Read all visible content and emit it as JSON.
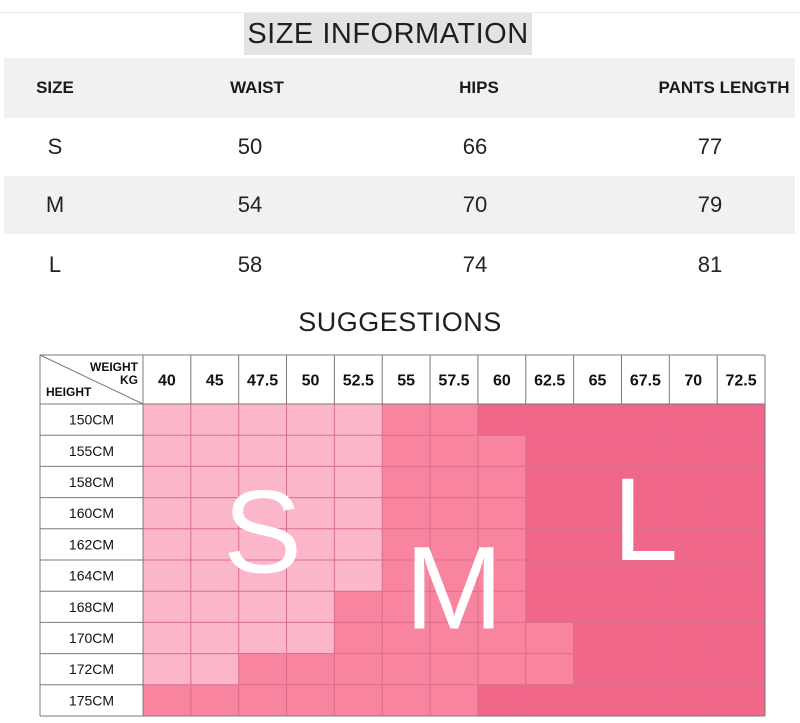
{
  "size_information": {
    "title": "SIZE INFORMATION",
    "columns": [
      "SIZE",
      "WAIST",
      "HIPS",
      "PANTS LENGTH"
    ],
    "rows": [
      {
        "size": "S",
        "waist": "50",
        "hips": "66",
        "pants_length": "77"
      },
      {
        "size": "M",
        "waist": "54",
        "hips": "70",
        "pants_length": "79"
      },
      {
        "size": "L",
        "waist": "58",
        "hips": "74",
        "pants_length": "81"
      }
    ]
  },
  "suggestions": {
    "title": "SUGGESTIONS",
    "corner_weight_label": "WEIGHT",
    "corner_unit_label": "KG",
    "corner_height_label": "HEIGHT",
    "weights": [
      "40",
      "45",
      "47.5",
      "50",
      "52.5",
      "55",
      "57.5",
      "60",
      "62.5",
      "65",
      "67.5",
      "70",
      "72.5"
    ],
    "heights": [
      "150CM",
      "155CM",
      "158CM",
      "160CM",
      "162CM",
      "164CM",
      "168CM",
      "170CM",
      "172CM",
      "175CM"
    ],
    "size_labels": [
      "S",
      "M",
      "L"
    ],
    "grid": [
      [
        "S",
        "S",
        "S",
        "S",
        "S",
        "M",
        "M",
        "L",
        "L",
        "L",
        "L",
        "L",
        "L"
      ],
      [
        "S",
        "S",
        "S",
        "S",
        "S",
        "M",
        "M",
        "M",
        "L",
        "L",
        "L",
        "L",
        "L"
      ],
      [
        "S",
        "S",
        "S",
        "S",
        "S",
        "M",
        "M",
        "M",
        "L",
        "L",
        "L",
        "L",
        "L"
      ],
      [
        "S",
        "S",
        "S",
        "S",
        "S",
        "M",
        "M",
        "M",
        "L",
        "L",
        "L",
        "L",
        "L"
      ],
      [
        "S",
        "S",
        "S",
        "S",
        "S",
        "M",
        "M",
        "M",
        "L",
        "L",
        "L",
        "L",
        "L"
      ],
      [
        "S",
        "S",
        "S",
        "S",
        "S",
        "M",
        "M",
        "M",
        "L",
        "L",
        "L",
        "L",
        "L"
      ],
      [
        "S",
        "S",
        "S",
        "S",
        "M",
        "M",
        "M",
        "M",
        "L",
        "L",
        "L",
        "L",
        "L"
      ],
      [
        "S",
        "S",
        "S",
        "S",
        "M",
        "M",
        "M",
        "M",
        "M",
        "L",
        "L",
        "L",
        "L"
      ],
      [
        "S",
        "S",
        "M",
        "M",
        "M",
        "M",
        "M",
        "M",
        "M",
        "L",
        "L",
        "L",
        "L"
      ],
      [
        "M",
        "M",
        "M",
        "M",
        "M",
        "M",
        "M",
        "L",
        "L",
        "L",
        "L",
        "L",
        "L"
      ]
    ],
    "colors": {
      "S": "#fbb6c9",
      "M": "#f8849f",
      "L": "#f1678a",
      "line": "#d77089",
      "header_border": "#7a7a7a"
    }
  }
}
